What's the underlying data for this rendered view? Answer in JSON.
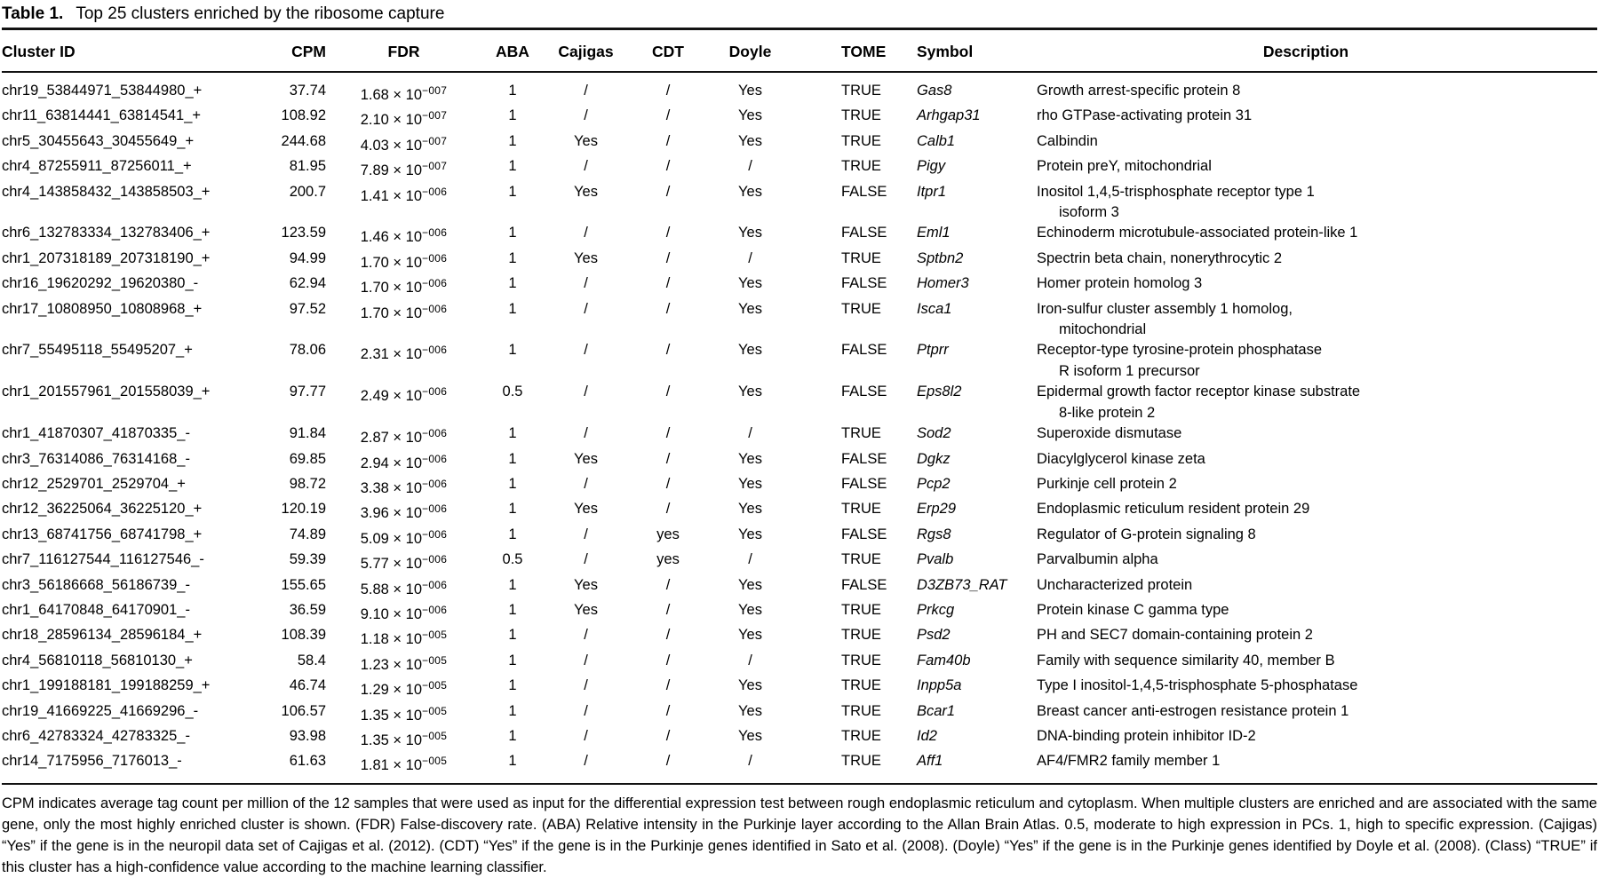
{
  "title": {
    "label": "Table 1.",
    "caption": "Top 25 clusters enriched by the ribosome capture"
  },
  "table": {
    "columns": [
      "Cluster ID",
      "CPM",
      "FDR",
      "ABA",
      "Cajigas",
      "CDT",
      "Doyle",
      "TOME",
      "Symbol",
      "Description"
    ],
    "fdr_base": "× 10",
    "rows": [
      {
        "cluster_id": "chr19_53844971_53844980_+",
        "cpm": "37.74",
        "fdr": {
          "mantissa": "1.68",
          "exponent": "−007"
        },
        "aba": "1",
        "cajigas": "/",
        "cdt": "/",
        "doyle": "Yes",
        "tome": "TRUE",
        "symbol": "Gas8",
        "description": "Growth arrest-specific protein 8"
      },
      {
        "cluster_id": "chr11_63814441_63814541_+",
        "cpm": "108.92",
        "fdr": {
          "mantissa": "2.10",
          "exponent": "−007"
        },
        "aba": "1",
        "cajigas": "/",
        "cdt": "/",
        "doyle": "Yes",
        "tome": "TRUE",
        "symbol": "Arhgap31",
        "description": "rho GTPase-activating protein 31"
      },
      {
        "cluster_id": "chr5_30455643_30455649_+",
        "cpm": "244.68",
        "fdr": {
          "mantissa": "4.03",
          "exponent": "−007"
        },
        "aba": "1",
        "cajigas": "Yes",
        "cdt": "/",
        "doyle": "Yes",
        "tome": "TRUE",
        "symbol": "Calb1",
        "description": "Calbindin"
      },
      {
        "cluster_id": "chr4_87255911_87256011_+",
        "cpm": "81.95",
        "fdr": {
          "mantissa": "7.89",
          "exponent": "−007"
        },
        "aba": "1",
        "cajigas": "/",
        "cdt": "/",
        "doyle": "/",
        "tome": "TRUE",
        "symbol": "Pigy",
        "description": "Protein preY, mitochondrial"
      },
      {
        "cluster_id": "chr4_143858432_143858503_+",
        "cpm": "200.7",
        "fdr": {
          "mantissa": "1.41",
          "exponent": "−006"
        },
        "aba": "1",
        "cajigas": "Yes",
        "cdt": "/",
        "doyle": "Yes",
        "tome": "FALSE",
        "symbol": "Itpr1",
        "description": "Inositol 1,4,5-trisphosphate receptor type 1\nisoform 3"
      },
      {
        "cluster_id": "chr6_132783334_132783406_+",
        "cpm": "123.59",
        "fdr": {
          "mantissa": "1.46",
          "exponent": "−006"
        },
        "aba": "1",
        "cajigas": "/",
        "cdt": "/",
        "doyle": "Yes",
        "tome": "FALSE",
        "symbol": "Eml1",
        "description": "Echinoderm microtubule-associated protein-like 1"
      },
      {
        "cluster_id": "chr1_207318189_207318190_+",
        "cpm": "94.99",
        "fdr": {
          "mantissa": "1.70",
          "exponent": "−006"
        },
        "aba": "1",
        "cajigas": "Yes",
        "cdt": "/",
        "doyle": "/",
        "tome": "TRUE",
        "symbol": "Sptbn2",
        "description": "Spectrin beta chain, nonerythrocytic 2"
      },
      {
        "cluster_id": "chr16_19620292_19620380_-",
        "cpm": "62.94",
        "fdr": {
          "mantissa": "1.70",
          "exponent": "−006"
        },
        "aba": "1",
        "cajigas": "/",
        "cdt": "/",
        "doyle": "Yes",
        "tome": "FALSE",
        "symbol": "Homer3",
        "description": "Homer protein homolog 3"
      },
      {
        "cluster_id": "chr17_10808950_10808968_+",
        "cpm": "97.52",
        "fdr": {
          "mantissa": "1.70",
          "exponent": "−006"
        },
        "aba": "1",
        "cajigas": "/",
        "cdt": "/",
        "doyle": "Yes",
        "tome": "TRUE",
        "symbol": "Isca1",
        "description": "Iron-sulfur cluster assembly 1 homolog,\nmitochondrial"
      },
      {
        "cluster_id": "chr7_55495118_55495207_+",
        "cpm": "78.06",
        "fdr": {
          "mantissa": "2.31",
          "exponent": "−006"
        },
        "aba": "1",
        "cajigas": "/",
        "cdt": "/",
        "doyle": "Yes",
        "tome": "FALSE",
        "symbol": "Ptprr",
        "description": "Receptor-type tyrosine-protein phosphatase\nR isoform 1 precursor"
      },
      {
        "cluster_id": "chr1_201557961_201558039_+",
        "cpm": "97.77",
        "fdr": {
          "mantissa": "2.49",
          "exponent": "−006"
        },
        "aba": "0.5",
        "cajigas": "/",
        "cdt": "/",
        "doyle": "Yes",
        "tome": "FALSE",
        "symbol": "Eps8l2",
        "description": "Epidermal growth factor receptor kinase substrate\n8-like protein 2"
      },
      {
        "cluster_id": "chr1_41870307_41870335_-",
        "cpm": "91.84",
        "fdr": {
          "mantissa": "2.87",
          "exponent": "−006"
        },
        "aba": "1",
        "cajigas": "/",
        "cdt": "/",
        "doyle": "/",
        "tome": "TRUE",
        "symbol": "Sod2",
        "description": "Superoxide dismutase"
      },
      {
        "cluster_id": "chr3_76314086_76314168_-",
        "cpm": "69.85",
        "fdr": {
          "mantissa": "2.94",
          "exponent": "−006"
        },
        "aba": "1",
        "cajigas": "Yes",
        "cdt": "/",
        "doyle": "Yes",
        "tome": "FALSE",
        "symbol": "Dgkz",
        "description": "Diacylglycerol kinase zeta"
      },
      {
        "cluster_id": "chr12_2529701_2529704_+",
        "cpm": "98.72",
        "fdr": {
          "mantissa": "3.38",
          "exponent": "−006"
        },
        "aba": "1",
        "cajigas": "/",
        "cdt": "/",
        "doyle": "Yes",
        "tome": "FALSE",
        "symbol": "Pcp2",
        "description": "Purkinje cell protein 2"
      },
      {
        "cluster_id": "chr12_36225064_36225120_+",
        "cpm": "120.19",
        "fdr": {
          "mantissa": "3.96",
          "exponent": "−006"
        },
        "aba": "1",
        "cajigas": "Yes",
        "cdt": "/",
        "doyle": "Yes",
        "tome": "TRUE",
        "symbol": "Erp29",
        "description": "Endoplasmic reticulum resident protein 29"
      },
      {
        "cluster_id": "chr13_68741756_68741798_+",
        "cpm": "74.89",
        "fdr": {
          "mantissa": "5.09",
          "exponent": "−006"
        },
        "aba": "1",
        "cajigas": "/",
        "cdt": "yes",
        "doyle": "Yes",
        "tome": "FALSE",
        "symbol": "Rgs8",
        "description": "Regulator of G-protein signaling 8"
      },
      {
        "cluster_id": "chr7_116127544_116127546_-",
        "cpm": "59.39",
        "fdr": {
          "mantissa": "5.77",
          "exponent": "−006"
        },
        "aba": "0.5",
        "cajigas": "/",
        "cdt": "yes",
        "doyle": "/",
        "tome": "TRUE",
        "symbol": "Pvalb",
        "description": "Parvalbumin alpha"
      },
      {
        "cluster_id": "chr3_56186668_56186739_-",
        "cpm": "155.65",
        "fdr": {
          "mantissa": "5.88",
          "exponent": "−006"
        },
        "aba": "1",
        "cajigas": "Yes",
        "cdt": "/",
        "doyle": "Yes",
        "tome": "FALSE",
        "symbol": "D3ZB73_RAT",
        "description": "Uncharacterized protein"
      },
      {
        "cluster_id": "chr1_64170848_64170901_-",
        "cpm": "36.59",
        "fdr": {
          "mantissa": "9.10",
          "exponent": "−006"
        },
        "aba": "1",
        "cajigas": "Yes",
        "cdt": "/",
        "doyle": "Yes",
        "tome": "TRUE",
        "symbol": "Prkcg",
        "description": "Protein kinase C gamma type"
      },
      {
        "cluster_id": "chr18_28596134_28596184_+",
        "cpm": "108.39",
        "fdr": {
          "mantissa": "1.18",
          "exponent": "−005"
        },
        "aba": "1",
        "cajigas": "/",
        "cdt": "/",
        "doyle": "Yes",
        "tome": "TRUE",
        "symbol": "Psd2",
        "description": "PH and SEC7 domain-containing protein 2"
      },
      {
        "cluster_id": "chr4_56810118_56810130_+",
        "cpm": "58.4",
        "fdr": {
          "mantissa": "1.23",
          "exponent": "−005"
        },
        "aba": "1",
        "cajigas": "/",
        "cdt": "/",
        "doyle": "/",
        "tome": "TRUE",
        "symbol": "Fam40b",
        "description": "Family with sequence similarity 40, member B"
      },
      {
        "cluster_id": "chr1_199188181_199188259_+",
        "cpm": "46.74",
        "fdr": {
          "mantissa": "1.29",
          "exponent": "−005"
        },
        "aba": "1",
        "cajigas": "/",
        "cdt": "/",
        "doyle": "Yes",
        "tome": "TRUE",
        "symbol": "Inpp5a",
        "description": "Type I inositol-1,4,5-trisphosphate 5-phosphatase"
      },
      {
        "cluster_id": "chr19_41669225_41669296_-",
        "cpm": "106.57",
        "fdr": {
          "mantissa": "1.35",
          "exponent": "−005"
        },
        "aba": "1",
        "cajigas": "/",
        "cdt": "/",
        "doyle": "Yes",
        "tome": "TRUE",
        "symbol": "Bcar1",
        "description": "Breast cancer anti-estrogen resistance protein 1"
      },
      {
        "cluster_id": "chr6_42783324_42783325_-",
        "cpm": "93.98",
        "fdr": {
          "mantissa": "1.35",
          "exponent": "−005"
        },
        "aba": "1",
        "cajigas": "/",
        "cdt": "/",
        "doyle": "Yes",
        "tome": "TRUE",
        "symbol": "Id2",
        "description": "DNA-binding protein inhibitor ID-2"
      },
      {
        "cluster_id": "chr14_7175956_7176013_-",
        "cpm": "61.63",
        "fdr": {
          "mantissa": "1.81",
          "exponent": "−005"
        },
        "aba": "1",
        "cajigas": "/",
        "cdt": "/",
        "doyle": "/",
        "tome": "TRUE",
        "symbol": "Aff1",
        "description": "AF4/FMR2 family member 1"
      }
    ]
  },
  "footnote": "CPM indicates average tag count per million of the 12 samples that were used as input for the differential expression test between rough endoplasmic reticulum and cytoplasm. When multiple clusters are enriched and are associated with the same gene, only the most highly enriched cluster is shown. (FDR) False-discovery rate. (ABA) Relative intensity in the Purkinje layer according to the Allan Brain Atlas. 0.5, moderate to high expression in PCs. 1, high to specific expression. (Cajigas) “Yes” if the gene is in the neuropil data set of Cajigas et al. (2012). (CDT) “Yes” if the gene is in the Purkinje genes identified in Sato et al. (2008). (Doyle) “Yes” if the gene is in the Purkinje genes identified by Doyle et al. (2008). (Class) “TRUE” if this cluster has a high-confidence value according to the machine learning classifier."
}
